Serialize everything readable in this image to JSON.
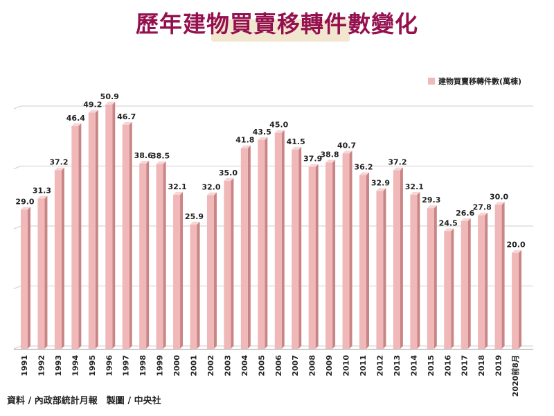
{
  "title": "歷年建物買賣移轉件數變化",
  "source": "資料 / 內政部統計月報　製圖 / 中央社",
  "chart_data": {
    "type": "bar",
    "title": "歷年建物買賣移轉件數變化",
    "categories": [
      "1991",
      "1992",
      "1993",
      "1994",
      "1995",
      "1996",
      "1997",
      "1998",
      "1999",
      "2000",
      "2001",
      "2002",
      "2003",
      "2004",
      "2005",
      "2006",
      "2007",
      "2008",
      "2009",
      "2010",
      "2011",
      "2012",
      "2013",
      "2014",
      "2015",
      "2016",
      "2017",
      "2018",
      "2019",
      "2020前8月"
    ],
    "series": [
      {
        "name": "建物買賣移轉件數(萬棟)",
        "values": [
          29.0,
          31.3,
          37.2,
          46.4,
          49.2,
          50.9,
          46.7,
          38.6,
          38.5,
          32.1,
          25.9,
          32.0,
          35.0,
          41.8,
          43.5,
          45.0,
          41.5,
          37.9,
          38.8,
          40.7,
          36.2,
          32.9,
          37.2,
          32.1,
          29.3,
          24.5,
          26.6,
          27.8,
          30.0,
          20.0
        ]
      }
    ],
    "value_labels": [
      "29.0",
      "31.3",
      "37.2",
      "46.4",
      "49.2",
      "50.9",
      "46.7",
      "38.6",
      "38.5",
      "32.1",
      "25.9",
      "32.0",
      "35.0",
      "41.8",
      "43.5",
      "45.0",
      "41.5",
      "37.9",
      "38.8",
      "40.7",
      "36.2",
      "32.9",
      "37.2",
      "32.1",
      "29.3",
      "24.5",
      "26.6",
      "27.8",
      "30.0",
      "20.0"
    ],
    "ylim": [
      0,
      50
    ],
    "grid": true,
    "legend": "top-right",
    "colors": {
      "bar_face": "#f0b8b8",
      "bar_side": "#c98585",
      "bar_top": "#f7d6d6",
      "title": "#94104f",
      "grid": "#cccccc"
    }
  }
}
